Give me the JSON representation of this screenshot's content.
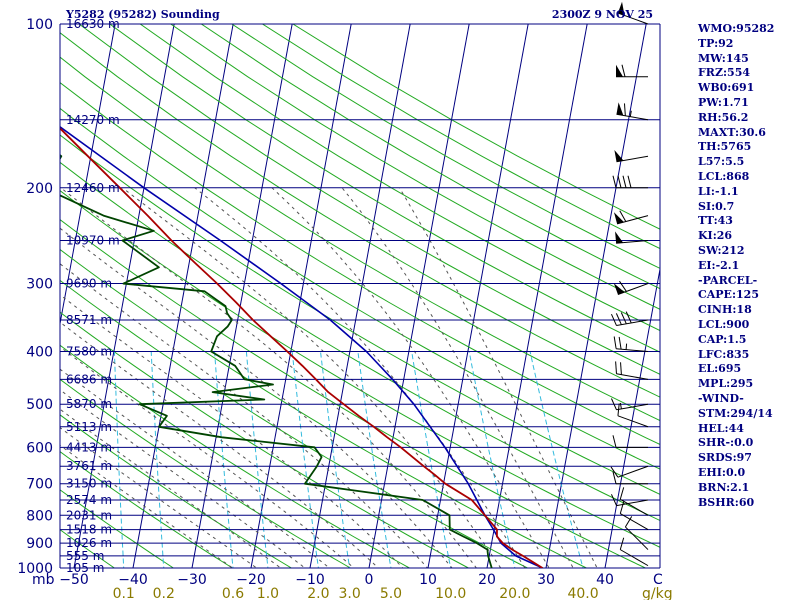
{
  "header": {
    "title": "Y5282 (95282) Sounding",
    "datetime": "2300Z  9 NOV 25"
  },
  "axis": {
    "pressure_unit": "mb",
    "mixing_ratio_unit": "g/kg",
    "temperature_unit": "C"
  },
  "colors": {
    "frame": "#000080",
    "isotherm": "#000080",
    "dry_adiabat": "#22aa22",
    "mixing_ratio": "#33bbdd",
    "moist_adiabat": "#555555",
    "temperature": "#aa0000",
    "dewpoint": "#004400",
    "parcel": "#0000aa",
    "mixing_label": "#8a7a00"
  },
  "chart_data": {
    "type": "line",
    "chart_kind": "skew-T log-P sounding",
    "pressure_levels": [
      {
        "p": 100,
        "label": "100"
      },
      {
        "p": 200,
        "label": "200"
      },
      {
        "p": 300,
        "label": "300"
      },
      {
        "p": 400,
        "label": "400"
      },
      {
        "p": 500,
        "label": "500"
      },
      {
        "p": 600,
        "label": "600"
      },
      {
        "p": 700,
        "label": "700"
      },
      {
        "p": 800,
        "label": "800"
      },
      {
        "p": 900,
        "label": "900"
      },
      {
        "p": 1000,
        "label": "1000"
      }
    ],
    "height_levels": [
      {
        "p": 100,
        "label": "16630 m"
      },
      {
        "p": 150,
        "label": "14270 m"
      },
      {
        "p": 200,
        "label": "12460 m"
      },
      {
        "p": 250,
        "label": "10970 m"
      },
      {
        "p": 300,
        "label": "9690 m"
      },
      {
        "p": 350,
        "label": "8571 m"
      },
      {
        "p": 400,
        "label": "7580 m"
      },
      {
        "p": 450,
        "label": "6686 m"
      },
      {
        "p": 500,
        "label": "5870 m"
      },
      {
        "p": 550,
        "label": "5113 m"
      },
      {
        "p": 600,
        "label": "4413 m"
      },
      {
        "p": 650,
        "label": "3761 m"
      },
      {
        "p": 700,
        "label": "3150 m"
      },
      {
        "p": 750,
        "label": "2574 m"
      },
      {
        "p": 800,
        "label": "2031 m"
      },
      {
        "p": 850,
        "label": "1518 m"
      },
      {
        "p": 900,
        "label": "1026 m"
      },
      {
        "p": 950,
        "label": "555 m"
      },
      {
        "p": 1000,
        "label": "105 m"
      }
    ],
    "temperature_ticks": [
      {
        "t": -50,
        "label": "−50"
      },
      {
        "t": -40,
        "label": "−40"
      },
      {
        "t": -30,
        "label": "−30"
      },
      {
        "t": -20,
        "label": "−20"
      },
      {
        "t": -10,
        "label": "−10"
      },
      {
        "t": 0,
        "label": "0"
      },
      {
        "t": 10,
        "label": "10"
      },
      {
        "t": 20,
        "label": "20"
      },
      {
        "t": 30,
        "label": "30"
      },
      {
        "t": 40,
        "label": "40"
      }
    ],
    "mixing_ratio_ticks": [
      {
        "w": 0.1,
        "label": "0.1"
      },
      {
        "w": 0.2,
        "label": "0.2"
      },
      {
        "w": 0.6,
        "label": "0.6"
      },
      {
        "w": 1.0,
        "label": "1.0"
      },
      {
        "w": 2.0,
        "label": "2.0"
      },
      {
        "w": 3.0,
        "label": "3.0"
      },
      {
        "w": 5.0,
        "label": "5.0"
      },
      {
        "w": 10.0,
        "label": "10.0"
      },
      {
        "w": 20.0,
        "label": "20.0"
      },
      {
        "w": 40.0,
        "label": "40.0"
      }
    ],
    "temperature_profile": [
      [
        1000,
        29.4
      ],
      [
        975,
        27.6
      ],
      [
        950,
        25.7
      ],
      [
        925,
        23.7
      ],
      [
        900,
        21.9
      ],
      [
        875,
        20.7
      ],
      [
        850,
        20.5
      ],
      [
        800,
        18.0
      ],
      [
        750,
        15.3
      ],
      [
        700,
        10.3
      ],
      [
        675,
        8.3
      ],
      [
        650,
        6.1
      ],
      [
        600,
        1.6
      ],
      [
        575,
        -1.0
      ],
      [
        550,
        -3.6
      ],
      [
        525,
        -6.5
      ],
      [
        500,
        -9.4
      ],
      [
        475,
        -12.4
      ],
      [
        450,
        -14.9
      ],
      [
        425,
        -17.6
      ],
      [
        400,
        -20.6
      ],
      [
        375,
        -23.9
      ],
      [
        350,
        -27.4
      ],
      [
        325,
        -30.8
      ],
      [
        300,
        -34.6
      ],
      [
        275,
        -39.0
      ],
      [
        250,
        -43.7
      ],
      [
        225,
        -48.5
      ],
      [
        200,
        -54.1
      ],
      [
        175,
        -60.5
      ],
      [
        150,
        -67.8
      ],
      [
        125,
        -75.1
      ],
      [
        100,
        -81.5
      ]
    ],
    "dewpoint_profile": [
      [
        1000,
        20.8
      ],
      [
        950,
        19.8
      ],
      [
        925,
        19.5
      ],
      [
        900,
        17.5
      ],
      [
        875,
        15.0
      ],
      [
        850,
        12.5
      ],
      [
        800,
        12.0
      ],
      [
        750,
        7.0
      ],
      [
        725,
        -3.0
      ],
      [
        700,
        -13.5
      ],
      [
        650,
        -12.0
      ],
      [
        625,
        -11.5
      ],
      [
        600,
        -13.0
      ],
      [
        575,
        -29.0
      ],
      [
        550,
        -40.0
      ],
      [
        525,
        -39.0
      ],
      [
        500,
        -44.0
      ],
      [
        490,
        -23.0
      ],
      [
        475,
        -32.0
      ],
      [
        460,
        -22.0
      ],
      [
        450,
        -27.0
      ],
      [
        425,
        -29.0
      ],
      [
        400,
        -33.5
      ],
      [
        375,
        -33.0
      ],
      [
        360,
        -31.5
      ],
      [
        350,
        -31.0
      ],
      [
        340,
        -32.0
      ],
      [
        330,
        -32.5
      ],
      [
        320,
        -34.5
      ],
      [
        310,
        -36.5
      ],
      [
        300,
        -50.5
      ],
      [
        280,
        -45.0
      ],
      [
        250,
        -52.0
      ],
      [
        240,
        -47.0
      ],
      [
        225,
        -56.0
      ],
      [
        200,
        -67.0
      ],
      [
        175,
        -65.0
      ],
      [
        150,
        -74.0
      ],
      [
        125,
        -76.0
      ],
      [
        100,
        -78.0
      ]
    ],
    "parcel_profile": [
      [
        1000,
        29.4
      ],
      [
        950,
        24.5
      ],
      [
        900,
        21.6
      ],
      [
        850,
        19.9
      ],
      [
        800,
        18.0
      ],
      [
        700,
        14.2
      ],
      [
        600,
        9.1
      ],
      [
        500,
        2.5
      ],
      [
        450,
        -1.9
      ],
      [
        400,
        -7.2
      ],
      [
        350,
        -14.3
      ],
      [
        300,
        -23.8
      ],
      [
        250,
        -35.4
      ],
      [
        200,
        -50.0
      ],
      [
        150,
        -68.0
      ],
      [
        100,
        -88.5
      ]
    ],
    "wind_barbs": [
      {
        "p": 990,
        "dir": 300,
        "spd": 10
      },
      {
        "p": 925,
        "dir": 315,
        "spd": 10
      },
      {
        "p": 850,
        "dir": 300,
        "spd": 10
      },
      {
        "p": 800,
        "dir": 300,
        "spd": 10
      },
      {
        "p": 750,
        "dir": 260,
        "spd": 10
      },
      {
        "p": 700,
        "dir": 270,
        "spd": 10
      },
      {
        "p": 650,
        "dir": 250,
        "spd": 10
      },
      {
        "p": 600,
        "dir": 270,
        "spd": 10
      },
      {
        "p": 550,
        "dir": 290,
        "spd": 10
      },
      {
        "p": 500,
        "dir": 260,
        "spd": 15
      },
      {
        "p": 450,
        "dir": 280,
        "spd": 20
      },
      {
        "p": 400,
        "dir": 275,
        "spd": 25
      },
      {
        "p": 350,
        "dir": 260,
        "spd": 40
      },
      {
        "p": 300,
        "dir": 250,
        "spd": 60
      },
      {
        "p": 250,
        "dir": 265,
        "spd": 50
      },
      {
        "p": 225,
        "dir": 255,
        "spd": 60
      },
      {
        "p": 200,
        "dir": 270,
        "spd": 40
      },
      {
        "p": 175,
        "dir": 260,
        "spd": 50
      },
      {
        "p": 150,
        "dir": 280,
        "spd": 65
      },
      {
        "p": 125,
        "dir": 270,
        "spd": 60
      },
      {
        "p": 100,
        "dir": 290,
        "spd": 50
      }
    ]
  },
  "indices": [
    "WMO:95282",
    "TP:92",
    "MW:145",
    "FRZ:554",
    "WB0:691",
    "PW:1.71",
    "RH:56.2",
    "MAXT:30.6",
    "TH:5765",
    "L57:5.5",
    "LCL:868",
    "LI:-1.1",
    "SI:0.7",
    "TT:43",
    "KI:26",
    "SW:212",
    "EI:-2.1",
    "-PARCEL-",
    "CAPE:125",
    "CINH:18",
    "LCL:900",
    "CAP:1.5",
    "LFC:835",
    "EL:695",
    "MPL:295",
    "-WIND-",
    "STM:294/14",
    "HEL:44",
    "SHR-:0.0",
    "SRDS:97",
    "EHI:0.0",
    "BRN:2.1",
    "BSHR:60"
  ]
}
